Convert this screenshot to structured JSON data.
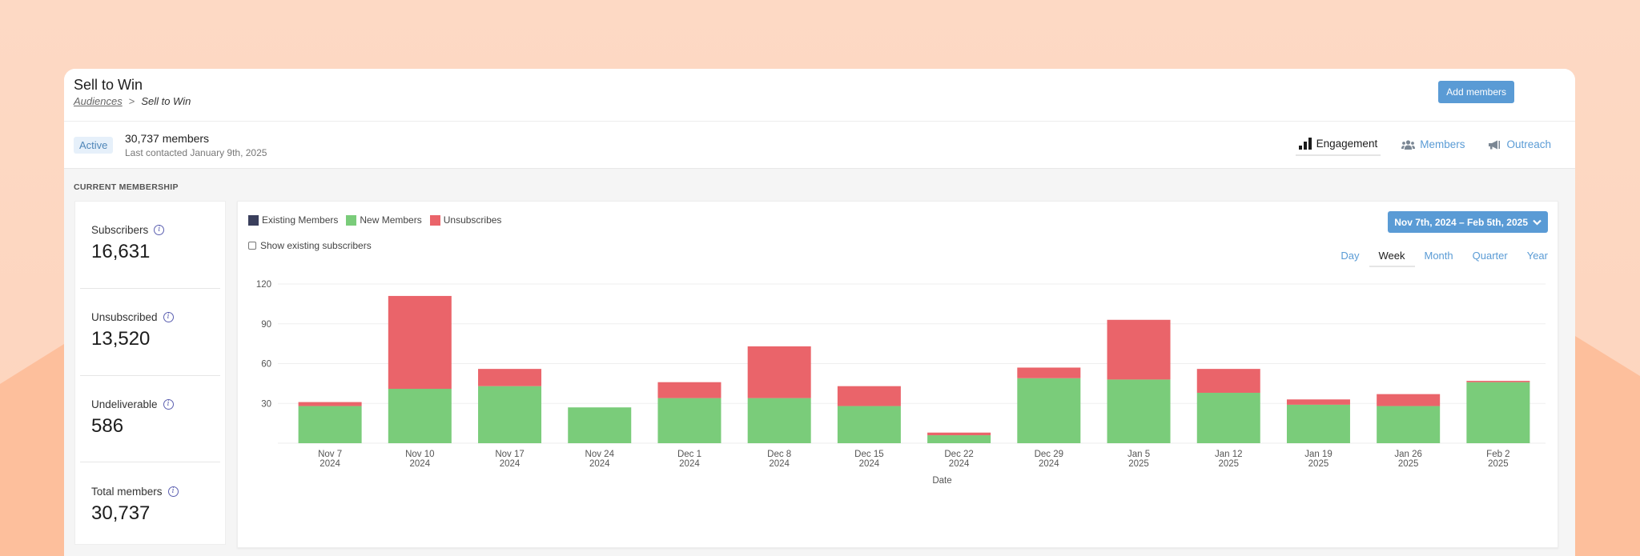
{
  "header": {
    "title": "Sell to Win",
    "breadcrumb": {
      "parent": "Audiences",
      "separator": ">",
      "current": "Sell to Win"
    },
    "add_members_label": "Add members"
  },
  "summary": {
    "status_badge": "Active",
    "members_count": "30,737 members",
    "last_contacted": "Last contacted January 9th, 2025"
  },
  "tabs": [
    {
      "label": "Engagement",
      "icon": "bar-chart-icon",
      "active": true
    },
    {
      "label": "Members",
      "icon": "users-icon",
      "active": false
    },
    {
      "label": "Outreach",
      "icon": "megaphone-icon",
      "active": false
    }
  ],
  "section_label": "CURRENT MEMBERSHIP",
  "stats": [
    {
      "label": "Subscribers",
      "value": "16,631"
    },
    {
      "label": "Unsubscribed",
      "value": "13,520"
    },
    {
      "label": "Undeliverable",
      "value": "586"
    },
    {
      "label": "Total members",
      "value": "30,737"
    }
  ],
  "chart_controls": {
    "legend": [
      {
        "label": "Existing Members",
        "color": "#3a3f5c"
      },
      {
        "label": "New Members",
        "color": "#7acc7a"
      },
      {
        "label": "Unsubscribes",
        "color": "#ea646a"
      }
    ],
    "show_existing_label": "Show existing subscribers",
    "show_existing_checked": false,
    "date_range": "Nov 7th, 2024 – Feb 5th, 2025",
    "periods": [
      "Day",
      "Week",
      "Month",
      "Quarter",
      "Year"
    ],
    "active_period": "Week"
  },
  "chart_data": {
    "type": "bar",
    "stacked": true,
    "title": "",
    "xlabel": "Date",
    "ylabel": "",
    "ylim": [
      0,
      120
    ],
    "yticks": [
      30,
      60,
      90,
      120
    ],
    "grid": true,
    "legend_position": "top-left",
    "categories": [
      "Nov 7\n2024",
      "Nov 10\n2024",
      "Nov 17\n2024",
      "Nov 24\n2024",
      "Dec 1\n2024",
      "Dec 8\n2024",
      "Dec 15\n2024",
      "Dec 22\n2024",
      "Dec 29\n2024",
      "Jan 5\n2025",
      "Jan 12\n2025",
      "Jan 19\n2025",
      "Jan 26\n2025",
      "Feb 2\n2025"
    ],
    "series": [
      {
        "name": "Existing Members",
        "color": "#3a3f5c",
        "values": [
          0,
          0,
          0,
          0,
          0,
          0,
          0,
          0,
          0,
          0,
          0,
          0,
          0,
          0
        ]
      },
      {
        "name": "New Members",
        "color": "#7acc7a",
        "values": [
          28,
          41,
          43,
          27,
          34,
          34,
          28,
          6,
          49,
          48,
          38,
          29,
          28,
          46
        ]
      },
      {
        "name": "Unsubscribes",
        "color": "#ea646a",
        "values": [
          3,
          70,
          13,
          0,
          12,
          39,
          15,
          2,
          8,
          45,
          18,
          4,
          9,
          1
        ]
      }
    ]
  }
}
